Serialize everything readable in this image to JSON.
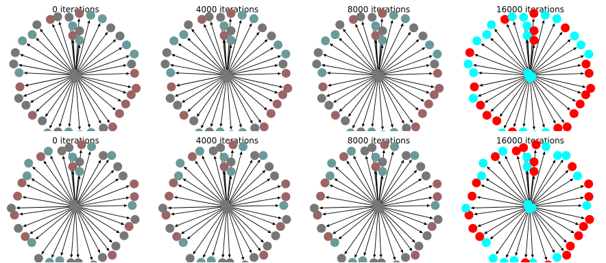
{
  "colors": {
    "teal": "#6a9a9b",
    "grey": "#777777",
    "mauve": "#9c6464",
    "red": "#ff0000",
    "cyan": "#00ffff",
    "edge": "#000000"
  },
  "rows": [
    {
      "panels": [
        {
          "title": "0 iterations",
          "palette": "muted",
          "seed": 11
        },
        {
          "title": "4000 iterations",
          "palette": "muted",
          "seed": 11
        },
        {
          "title": "8000 iterations",
          "palette": "muted",
          "seed": 11
        },
        {
          "title": "16000 iterations",
          "palette": "bright",
          "seed": 11
        }
      ]
    },
    {
      "panels": [
        {
          "title": "0 iterations",
          "palette": "muted",
          "seed": 23
        },
        {
          "title": "4000 iterations",
          "palette": "muted",
          "seed": 23
        },
        {
          "title": "8000 iterations",
          "palette": "muted",
          "seed": 23
        },
        {
          "title": "16000 iterations",
          "palette": "bright",
          "seed": 23
        }
      ]
    }
  ]
}
